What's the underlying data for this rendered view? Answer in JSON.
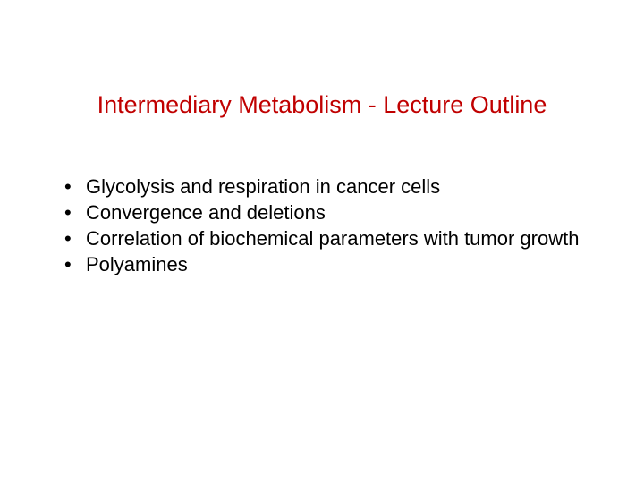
{
  "slide": {
    "title": "Intermediary Metabolism - Lecture Outline",
    "title_color": "#c00000",
    "title_fontsize": 27,
    "background_color": "#ffffff",
    "bullets": [
      {
        "text": "Glycolysis and respiration in cancer cells"
      },
      {
        "text": "Convergence and deletions"
      },
      {
        "text": "Correlation of biochemical parameters with tumor growth"
      },
      {
        "text": "Polyamines"
      }
    ],
    "bullet_color": "#000000",
    "bullet_fontsize": 22
  }
}
